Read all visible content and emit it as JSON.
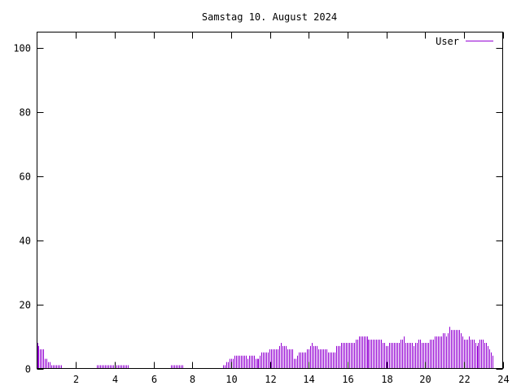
{
  "chart_data": {
    "type": "bar",
    "title": "Samstag 10. August 2024",
    "xlabel": "",
    "ylabel": "",
    "xlim": [
      0,
      24
    ],
    "ylim": [
      0,
      105
    ],
    "xticks": [
      2,
      4,
      6,
      8,
      10,
      12,
      14,
      16,
      18,
      20,
      22,
      24
    ],
    "yticks": [
      0,
      20,
      40,
      60,
      80,
      100
    ],
    "legend_position": "top-right",
    "bar_step_hours": 0.0833,
    "series": [
      {
        "name": "User",
        "color": "#9400d3",
        "values": [
          8,
          7,
          6,
          6,
          6,
          3,
          3,
          2,
          2,
          1,
          1,
          1,
          1,
          1,
          1,
          1,
          0,
          0,
          0,
          0,
          0,
          0,
          0,
          0,
          0,
          0,
          0,
          0,
          0,
          0,
          0,
          0,
          0,
          0,
          0,
          0,
          0,
          1,
          1,
          1,
          1,
          1,
          1,
          1,
          1,
          1,
          1,
          1,
          1,
          1,
          1,
          1,
          1,
          1,
          1,
          1,
          1,
          0,
          0,
          0,
          0,
          0,
          0,
          0,
          0,
          0,
          0,
          0,
          0,
          0,
          0,
          0,
          0,
          0,
          0,
          0,
          0,
          0,
          0,
          0,
          0,
          0,
          0,
          1,
          1,
          1,
          1,
          1,
          1,
          1,
          1,
          0,
          0,
          0,
          0,
          0,
          0,
          0,
          0,
          0,
          0,
          0,
          0,
          0,
          0,
          0,
          0,
          0,
          0,
          0,
          0,
          0,
          0,
          0,
          0,
          1,
          1,
          2,
          2,
          3,
          3,
          3,
          4,
          4,
          4,
          4,
          4,
          4,
          4,
          4,
          3,
          4,
          4,
          4,
          4,
          3,
          3,
          3,
          4,
          5,
          5,
          5,
          5,
          5,
          6,
          6,
          6,
          6,
          6,
          6,
          7,
          8,
          7,
          7,
          7,
          6,
          6,
          6,
          6,
          3,
          3,
          4,
          5,
          5,
          5,
          5,
          5,
          6,
          6,
          7,
          8,
          7,
          7,
          7,
          6,
          6,
          6,
          6,
          6,
          6,
          5,
          5,
          5,
          5,
          5,
          7,
          7,
          7,
          8,
          8,
          8,
          8,
          8,
          8,
          8,
          8,
          8,
          9,
          9,
          10,
          10,
          10,
          10,
          10,
          10,
          9,
          9,
          9,
          9,
          9,
          9,
          9,
          9,
          9,
          8,
          8,
          7,
          7,
          8,
          8,
          8,
          8,
          8,
          8,
          8,
          9,
          9,
          10,
          8,
          8,
          8,
          8,
          8,
          7,
          8,
          8,
          9,
          9,
          8,
          8,
          8,
          8,
          8,
          9,
          9,
          9,
          10,
          10,
          10,
          10,
          10,
          11,
          11,
          10,
          11,
          13,
          12,
          12,
          12,
          12,
          12,
          12,
          11,
          10,
          9,
          9,
          9,
          10,
          9,
          9,
          9,
          8,
          7,
          8,
          9,
          9,
          9,
          8,
          8,
          7,
          6,
          5,
          4
        ]
      }
    ]
  }
}
